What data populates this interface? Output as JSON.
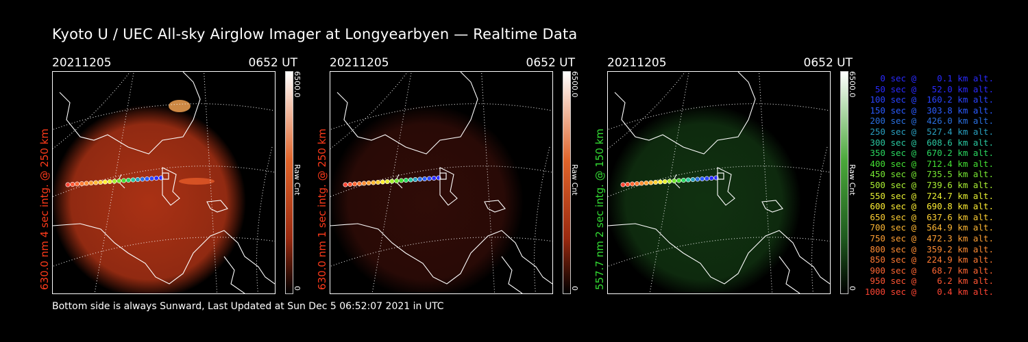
{
  "title": "Kyoto U / UEC All-sky Airglow Imager at Longyearbyen — Realtime Data",
  "footer": "Bottom side is always Sunward, Last Updated at Sun Dec  5 06:52:07 2021 in UTC",
  "panels": [
    {
      "date": "20211205",
      "time": "0652 UT",
      "ylabel": "630.0 nm 4 sec intg. @ 250 km",
      "ylabel_color": "#ff3a1a",
      "colorbar_max": "6500.0",
      "colorbar_min": "0",
      "colorbar_unit": "Raw Cnt",
      "glow_color": "#c83a18",
      "intensity": 0.85
    },
    {
      "date": "20211205",
      "time": "0652 UT",
      "ylabel": "630.0 nm 1 sec intg. @ 250 km",
      "ylabel_color": "#ff3a1a",
      "colorbar_max": "6500.0",
      "colorbar_min": "0",
      "colorbar_unit": "Raw Cnt",
      "glow_color": "#6a1a10",
      "intensity": 0.45
    },
    {
      "date": "20211205",
      "time": "0652 UT",
      "ylabel": "557.7 nm 2 sec intg. @ 150 km",
      "ylabel_color": "#33dd33",
      "colorbar_max": "6500.0",
      "colorbar_min": "0",
      "colorbar_unit": "Raw Cnt",
      "glow_color": "#1e5a1e",
      "intensity": 0.55
    }
  ],
  "legend": [
    {
      "text": "   0 sec @    0.1 km alt.",
      "color": "#2a2aff"
    },
    {
      "text": "  50 sec @   52.0 km alt.",
      "color": "#2a2aff"
    },
    {
      "text": " 100 sec @  160.2 km alt.",
      "color": "#2a44ff"
    },
    {
      "text": " 150 sec @  303.8 km alt.",
      "color": "#2a5cff"
    },
    {
      "text": " 200 sec @  426.0 km alt.",
      "color": "#2a70e0"
    },
    {
      "text": " 250 sec @  527.4 km alt.",
      "color": "#2aa0c0"
    },
    {
      "text": " 300 sec @  608.6 km alt.",
      "color": "#2ac8a0"
    },
    {
      "text": " 350 sec @  670.2 km alt.",
      "color": "#2ad860"
    },
    {
      "text": " 400 sec @  712.4 km alt.",
      "color": "#44e033"
    },
    {
      "text": " 450 sec @  735.5 km alt.",
      "color": "#77e833"
    },
    {
      "text": " 500 sec @  739.6 km alt.",
      "color": "#aaf033"
    },
    {
      "text": " 550 sec @  724.7 km alt.",
      "color": "#e8f033"
    },
    {
      "text": " 600 sec @  690.8 km alt.",
      "color": "#ffee33"
    },
    {
      "text": " 650 sec @  637.6 km alt.",
      "color": "#ffd033"
    },
    {
      "text": " 700 sec @  564.9 km alt.",
      "color": "#ffb833"
    },
    {
      "text": " 750 sec @  472.3 km alt.",
      "color": "#ffa033"
    },
    {
      "text": " 800 sec @  359.2 km alt.",
      "color": "#ff8c33"
    },
    {
      "text": " 850 sec @  224.9 km alt.",
      "color": "#ff7a33"
    },
    {
      "text": " 900 sec @   68.7 km alt.",
      "color": "#ff6633"
    },
    {
      "text": " 950 sec @    6.2 km alt.",
      "color": "#ff5533"
    },
    {
      "text": "1000 sec @    0.4 km alt.",
      "color": "#ff4433"
    }
  ]
}
